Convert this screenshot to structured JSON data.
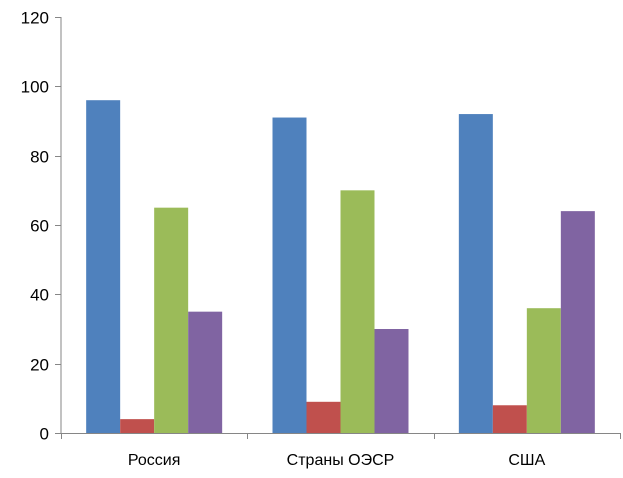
{
  "chart_data": {
    "type": "bar",
    "categories": [
      "Россия",
      "Страны ОЭСР",
      "США"
    ],
    "series": [
      {
        "values": [
          96,
          91,
          92
        ],
        "color": "#4F81BD"
      },
      {
        "values": [
          4,
          9,
          8
        ],
        "color": "#C0504D"
      },
      {
        "values": [
          65,
          70,
          36
        ],
        "color": "#9BBB59"
      },
      {
        "values": [
          35,
          30,
          64
        ],
        "color": "#8064A2"
      }
    ],
    "yticks": [
      "0",
      "20",
      "40",
      "60",
      "80",
      "100",
      "120"
    ],
    "ylim": [
      0,
      120
    ],
    "grid": false,
    "legend": "none",
    "title": "",
    "xlabel": "",
    "ylabel": ""
  }
}
